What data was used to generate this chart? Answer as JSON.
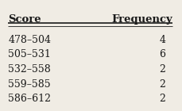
{
  "col1_header": "Score",
  "col2_header": "Frequency",
  "rows": [
    [
      "478–504",
      "4"
    ],
    [
      "505–531",
      "6"
    ],
    [
      "532–558",
      "2"
    ],
    [
      "559–585",
      "2"
    ],
    [
      "586–612",
      "2"
    ]
  ],
  "bg_color": "#f0ece4",
  "text_color": "#1a1a1a",
  "header_fontsize": 9.5,
  "row_fontsize": 9.0
}
